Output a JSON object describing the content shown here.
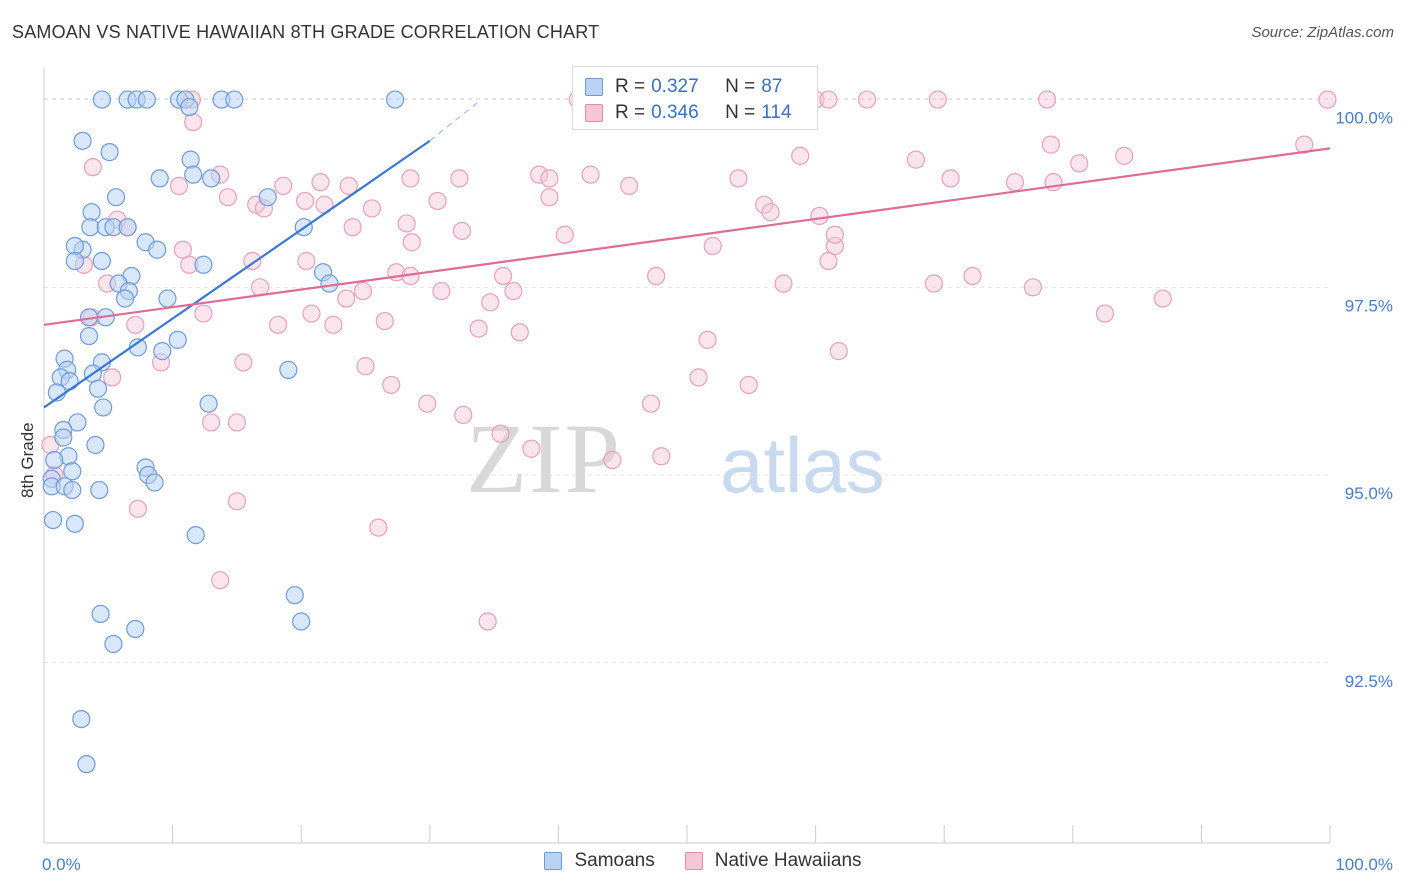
{
  "title": "SAMOAN VS NATIVE HAWAIIAN 8TH GRADE CORRELATION CHART",
  "source": "Source: ZipAtlas.com",
  "watermark": {
    "zip": "ZIP",
    "atlas": "atlas"
  },
  "legend_top": {
    "rows": [
      {
        "r_label": "R =",
        "r_value": "0.327",
        "n_label": "N =",
        "n_value": "87"
      },
      {
        "r_label": "R =",
        "r_value": "0.346",
        "n_label": "N =",
        "n_value": "114"
      }
    ]
  },
  "colors": {
    "blue_fill": "#b9d3f5",
    "blue_line": "#3a78d4",
    "pink_fill": "#f7c6d6",
    "pink_line": "#e06c96",
    "axis_text": "#4a7cc7"
  },
  "chart_data": {
    "type": "scatter",
    "title": "SAMOAN VS NATIVE HAWAIIAN 8TH GRADE CORRELATION CHART",
    "xlabel": "",
    "ylabel": "8th Grade",
    "xlim": [
      0,
      100
    ],
    "ylim": [
      90.1,
      100.5
    ],
    "x_tick_labels": [
      "0.0%",
      "100.0%"
    ],
    "y_ticks": [
      92.5,
      95.0,
      97.5,
      100.0
    ],
    "y_tick_labels": [
      "92.5%",
      "95.0%",
      "97.5%",
      "100.0%"
    ],
    "grid": true,
    "legend": [
      "Samoans",
      "Native Hawaiians"
    ],
    "series": [
      {
        "name": "Samoans",
        "R": 0.327,
        "N": 87,
        "trend": {
          "x": [
            0,
            30
          ],
          "y": [
            95.9,
            99.45
          ],
          "dashed_to": [
            34,
            100.0
          ]
        },
        "points": [
          [
            4.5,
            100.0
          ],
          [
            6.5,
            100.0
          ],
          [
            7.2,
            100.0
          ],
          [
            8.0,
            100.0
          ],
          [
            10.5,
            100.0
          ],
          [
            11.0,
            100.0
          ],
          [
            11.3,
            99.9
          ],
          [
            13.8,
            100.0
          ],
          [
            14.8,
            100.0
          ],
          [
            27.3,
            100.0
          ],
          [
            3.0,
            99.45
          ],
          [
            5.1,
            99.3
          ],
          [
            11.4,
            99.2
          ],
          [
            11.6,
            99.0
          ],
          [
            9.0,
            98.95
          ],
          [
            13.0,
            98.95
          ],
          [
            5.6,
            98.7
          ],
          [
            17.4,
            98.7
          ],
          [
            3.7,
            98.5
          ],
          [
            3.6,
            98.3
          ],
          [
            4.8,
            98.3
          ],
          [
            5.4,
            98.3
          ],
          [
            6.5,
            98.3
          ],
          [
            20.2,
            98.3
          ],
          [
            7.9,
            98.1
          ],
          [
            3.0,
            98.0
          ],
          [
            2.4,
            98.05
          ],
          [
            8.8,
            98.0
          ],
          [
            2.4,
            97.85
          ],
          [
            4.5,
            97.85
          ],
          [
            12.4,
            97.8
          ],
          [
            21.7,
            97.7
          ],
          [
            6.8,
            97.65
          ],
          [
            5.8,
            97.55
          ],
          [
            6.6,
            97.45
          ],
          [
            22.2,
            97.55
          ],
          [
            6.3,
            97.35
          ],
          [
            9.6,
            97.35
          ],
          [
            3.5,
            97.1
          ],
          [
            4.8,
            97.1
          ],
          [
            10.4,
            96.8
          ],
          [
            7.3,
            96.7
          ],
          [
            9.2,
            96.65
          ],
          [
            1.6,
            96.55
          ],
          [
            3.5,
            96.85
          ],
          [
            4.5,
            96.5
          ],
          [
            1.8,
            96.4
          ],
          [
            1.3,
            96.3
          ],
          [
            2.0,
            96.25
          ],
          [
            3.8,
            96.35
          ],
          [
            19.0,
            96.4
          ],
          [
            4.2,
            96.15
          ],
          [
            1.0,
            96.1
          ],
          [
            4.6,
            95.9
          ],
          [
            12.8,
            95.95
          ],
          [
            2.6,
            95.7
          ],
          [
            1.5,
            95.6
          ],
          [
            1.5,
            95.5
          ],
          [
            4.0,
            95.4
          ],
          [
            1.9,
            95.25
          ],
          [
            0.8,
            95.2
          ],
          [
            2.2,
            95.05
          ],
          [
            7.9,
            95.1
          ],
          [
            8.1,
            95.0
          ],
          [
            8.6,
            94.9
          ],
          [
            0.6,
            94.95
          ],
          [
            0.6,
            94.85
          ],
          [
            1.6,
            94.85
          ],
          [
            2.2,
            94.8
          ],
          [
            4.3,
            94.8
          ],
          [
            0.7,
            94.4
          ],
          [
            2.4,
            94.35
          ],
          [
            11.8,
            94.2
          ],
          [
            19.5,
            93.4
          ],
          [
            4.4,
            93.15
          ],
          [
            7.1,
            92.95
          ],
          [
            20.0,
            93.05
          ],
          [
            5.4,
            92.75
          ],
          [
            2.9,
            91.75
          ],
          [
            3.3,
            91.15
          ]
        ]
      },
      {
        "name": "Native Hawaiians",
        "R": 0.346,
        "N": 114,
        "trend": {
          "x": [
            0,
            100
          ],
          "y": [
            97.0,
            99.35
          ]
        },
        "points": [
          [
            11.5,
            100.0
          ],
          [
            41.5,
            100.0
          ],
          [
            42.0,
            100.0
          ],
          [
            44.0,
            100.0
          ],
          [
            58.0,
            100.0
          ],
          [
            58.6,
            100.0
          ],
          [
            59.0,
            100.0
          ],
          [
            60.0,
            100.0
          ],
          [
            61.0,
            100.0
          ],
          [
            64.0,
            100.0
          ],
          [
            69.5,
            100.0
          ],
          [
            78.0,
            100.0
          ],
          [
            99.8,
            100.0
          ],
          [
            11.6,
            99.7
          ],
          [
            38.5,
            99.0
          ],
          [
            58.8,
            99.25
          ],
          [
            67.8,
            99.2
          ],
          [
            80.5,
            99.15
          ],
          [
            84.0,
            99.25
          ],
          [
            3.8,
            99.1
          ],
          [
            10.5,
            98.85
          ],
          [
            13.7,
            99.0
          ],
          [
            21.5,
            98.9
          ],
          [
            18.6,
            98.85
          ],
          [
            28.5,
            98.95
          ],
          [
            32.3,
            98.95
          ],
          [
            39.3,
            98.95
          ],
          [
            42.5,
            99.0
          ],
          [
            45.5,
            98.85
          ],
          [
            54.0,
            98.95
          ],
          [
            70.5,
            98.95
          ],
          [
            75.5,
            98.9
          ],
          [
            78.3,
            99.4
          ],
          [
            78.5,
            98.9
          ],
          [
            98.0,
            99.4
          ],
          [
            14.3,
            98.7
          ],
          [
            16.5,
            98.6
          ],
          [
            17.1,
            98.55
          ],
          [
            20.3,
            98.65
          ],
          [
            21.8,
            98.6
          ],
          [
            23.7,
            98.85
          ],
          [
            25.5,
            98.55
          ],
          [
            30.6,
            98.65
          ],
          [
            39.3,
            98.7
          ],
          [
            56.0,
            98.6
          ],
          [
            56.5,
            98.5
          ],
          [
            60.3,
            98.45
          ],
          [
            5.7,
            98.4
          ],
          [
            6.5,
            98.3
          ],
          [
            24.0,
            98.3
          ],
          [
            28.2,
            98.35
          ],
          [
            28.6,
            98.1
          ],
          [
            32.5,
            98.25
          ],
          [
            40.5,
            98.2
          ],
          [
            10.8,
            98.0
          ],
          [
            52.0,
            98.05
          ],
          [
            61.5,
            98.05
          ],
          [
            61.0,
            97.85
          ],
          [
            11.3,
            97.8
          ],
          [
            20.4,
            97.85
          ],
          [
            3.1,
            97.8
          ],
          [
            16.2,
            97.85
          ],
          [
            27.4,
            97.7
          ],
          [
            28.5,
            97.65
          ],
          [
            35.7,
            97.65
          ],
          [
            47.6,
            97.65
          ],
          [
            72.2,
            97.65
          ],
          [
            4.9,
            97.55
          ],
          [
            16.8,
            97.5
          ],
          [
            24.8,
            97.45
          ],
          [
            30.9,
            97.45
          ],
          [
            34.7,
            97.3
          ],
          [
            36.5,
            97.45
          ],
          [
            57.5,
            97.55
          ],
          [
            69.2,
            97.55
          ],
          [
            87.0,
            97.35
          ],
          [
            23.5,
            97.35
          ],
          [
            20.8,
            97.15
          ],
          [
            12.4,
            97.15
          ],
          [
            3.7,
            97.1
          ],
          [
            7.1,
            97.0
          ],
          [
            18.2,
            97.0
          ],
          [
            22.5,
            97.0
          ],
          [
            26.5,
            97.05
          ],
          [
            33.8,
            96.95
          ],
          [
            37.0,
            96.9
          ],
          [
            51.6,
            96.8
          ],
          [
            61.8,
            96.65
          ],
          [
            5.3,
            96.3
          ],
          [
            9.1,
            96.5
          ],
          [
            15.5,
            96.5
          ],
          [
            25.0,
            96.45
          ],
          [
            27.0,
            96.2
          ],
          [
            50.9,
            96.3
          ],
          [
            54.8,
            96.2
          ],
          [
            29.8,
            95.95
          ],
          [
            47.2,
            95.95
          ],
          [
            32.6,
            95.8
          ],
          [
            13.0,
            95.7
          ],
          [
            15.0,
            95.7
          ],
          [
            35.5,
            95.55
          ],
          [
            37.9,
            95.35
          ],
          [
            44.2,
            95.2
          ],
          [
            48.0,
            95.25
          ],
          [
            0.5,
            95.4
          ],
          [
            0.8,
            95.0
          ],
          [
            7.3,
            94.55
          ],
          [
            15.0,
            94.65
          ],
          [
            26.0,
            94.3
          ],
          [
            13.7,
            93.6
          ],
          [
            34.5,
            93.05
          ],
          [
            61.5,
            98.2
          ],
          [
            76.9,
            97.5
          ],
          [
            82.5,
            97.15
          ]
        ]
      }
    ]
  }
}
